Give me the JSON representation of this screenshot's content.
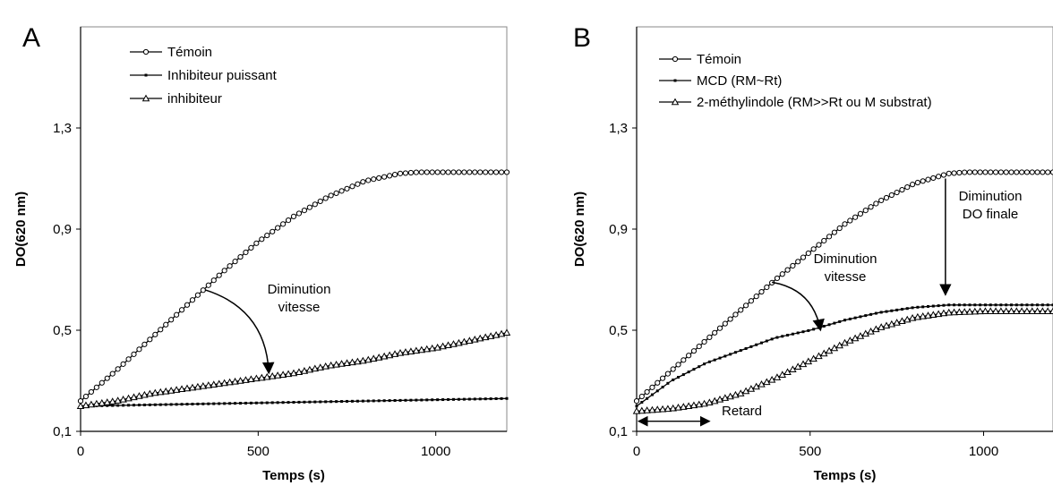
{
  "chart_data": [
    {
      "panel_label": "A",
      "type": "line",
      "xlabel": "Temps (s)",
      "ylabel": "DO(620 nm)",
      "xlim": [
        0,
        1200
      ],
      "ylim": [
        0.1,
        1.7
      ],
      "x_ticks": [
        0,
        500,
        1000
      ],
      "x_tick_labels": [
        "0",
        "500",
        "1000"
      ],
      "y_ticks": [
        0.1,
        0.5,
        0.9,
        1.3
      ],
      "y_tick_labels": [
        "0,1",
        "0,5",
        "0,9",
        "1,3"
      ],
      "grid": false,
      "legend_position": "top-left",
      "series": [
        {
          "name": "Témoin",
          "marker": "circle",
          "x": [
            0,
            100,
            200,
            300,
            400,
            500,
            600,
            700,
            800,
            900,
            950,
            1000,
            1100,
            1200
          ],
          "y": [
            0.22,
            0.34,
            0.47,
            0.6,
            0.73,
            0.85,
            0.95,
            1.03,
            1.09,
            1.12,
            1.125,
            1.125,
            1.125,
            1.125
          ]
        },
        {
          "name": "Inhibiteur puissant",
          "marker": "dash",
          "x": [
            0,
            200,
            400,
            600,
            800,
            1000,
            1200
          ],
          "y": [
            0.2,
            0.205,
            0.21,
            0.215,
            0.22,
            0.225,
            0.23
          ]
        },
        {
          "name": "inhibiteur",
          "marker": "triangle",
          "x": [
            0,
            100,
            200,
            300,
            400,
            500,
            600,
            700,
            800,
            900,
            1000,
            1100,
            1200
          ],
          "y": [
            0.2,
            0.22,
            0.25,
            0.27,
            0.29,
            0.31,
            0.33,
            0.36,
            0.38,
            0.41,
            0.43,
            0.46,
            0.49
          ]
        }
      ],
      "annotations": [
        {
          "text_lines": [
            "Diminution",
            "vitesse"
          ],
          "arrow_from": [
            350,
            0.66
          ],
          "arrow_to": [
            530,
            0.33
          ]
        }
      ]
    },
    {
      "panel_label": "B",
      "type": "line",
      "xlabel": "Temps (s)",
      "ylabel": "DO(620 nm)",
      "xlim": [
        0,
        1200
      ],
      "ylim": [
        0.1,
        1.7
      ],
      "x_ticks": [
        0,
        500,
        1000
      ],
      "x_tick_labels": [
        "0",
        "500",
        "1000"
      ],
      "y_ticks": [
        0.1,
        0.5,
        0.9,
        1.3
      ],
      "y_tick_labels": [
        "0,1",
        "0,5",
        "0,9",
        "1,3"
      ],
      "grid": false,
      "legend_position": "top-left",
      "series": [
        {
          "name": "Témoin",
          "marker": "circle",
          "x": [
            0,
            100,
            200,
            300,
            400,
            500,
            600,
            700,
            800,
            900,
            950,
            1000,
            1100,
            1200
          ],
          "y": [
            0.22,
            0.34,
            0.46,
            0.58,
            0.7,
            0.81,
            0.92,
            1.01,
            1.08,
            1.12,
            1.125,
            1.125,
            1.125,
            1.125
          ]
        },
        {
          "name": "MCD (RM~Rt)",
          "marker": "dash",
          "x": [
            0,
            100,
            200,
            300,
            400,
            500,
            600,
            700,
            800,
            900,
            1000,
            1100,
            1200
          ],
          "y": [
            0.2,
            0.3,
            0.37,
            0.42,
            0.47,
            0.5,
            0.54,
            0.57,
            0.59,
            0.6,
            0.6,
            0.6,
            0.6
          ]
        },
        {
          "name": "2-méthylindole (RM>>Rt ou M substrat)",
          "marker": "triangle",
          "x": [
            0,
            100,
            200,
            300,
            400,
            500,
            600,
            700,
            800,
            900,
            1000,
            1100,
            1200
          ],
          "y": [
            0.18,
            0.19,
            0.21,
            0.25,
            0.31,
            0.38,
            0.45,
            0.51,
            0.55,
            0.57,
            0.575,
            0.575,
            0.575
          ]
        }
      ],
      "annotations": [
        {
          "text_lines": [
            "Diminution",
            "vitesse"
          ],
          "arrow_from": [
            390,
            0.69
          ],
          "arrow_to": [
            530,
            0.5
          ]
        },
        {
          "text_lines": [
            "Diminution",
            "DO finale"
          ],
          "arrow_from": [
            890,
            1.1
          ],
          "arrow_to": [
            890,
            0.64
          ]
        },
        {
          "text_lines": [
            "Retard"
          ],
          "arrow_from": [
            0,
            0.14
          ],
          "arrow_to": [
            210,
            0.14
          ]
        }
      ]
    }
  ]
}
